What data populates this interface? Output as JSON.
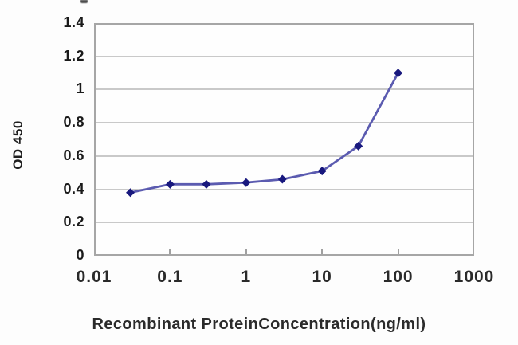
{
  "chart_data": {
    "type": "line",
    "title": "",
    "xlabel": "Recombinant ProteinConcentration(ng/ml)",
    "ylabel": "OD 450",
    "x_scale": "log",
    "xlim": [
      0.01,
      1000
    ],
    "ylim": [
      0,
      1.4
    ],
    "x_ticks": [
      "0.01",
      "0.1",
      "1",
      "10",
      "100",
      "1000"
    ],
    "x_tick_values": [
      0.01,
      0.1,
      1,
      10,
      100,
      1000
    ],
    "y_ticks": [
      "1.4",
      "1.2",
      "1",
      "0.8",
      "0.6",
      "0.4",
      "0.2",
      "0"
    ],
    "y_tick_values": [
      1.4,
      1.2,
      1,
      0.8,
      0.6,
      0.4,
      0.2,
      0
    ],
    "grid": "horizontal",
    "legend": "none",
    "series": [
      {
        "name": "OD 450",
        "marker": "diamond",
        "x": [
          0.03,
          0.1,
          0.3,
          1,
          3,
          10,
          30,
          100
        ],
        "y": [
          0.38,
          0.43,
          0.43,
          0.44,
          0.46,
          0.51,
          0.66,
          1.1
        ]
      }
    ],
    "colors": {
      "line": "#5b5bb0",
      "marker": "#18187e",
      "gridline": "#c9c9c9",
      "axis_border": "#a6a6a6",
      "tick_text": "#1a1a1a"
    }
  }
}
